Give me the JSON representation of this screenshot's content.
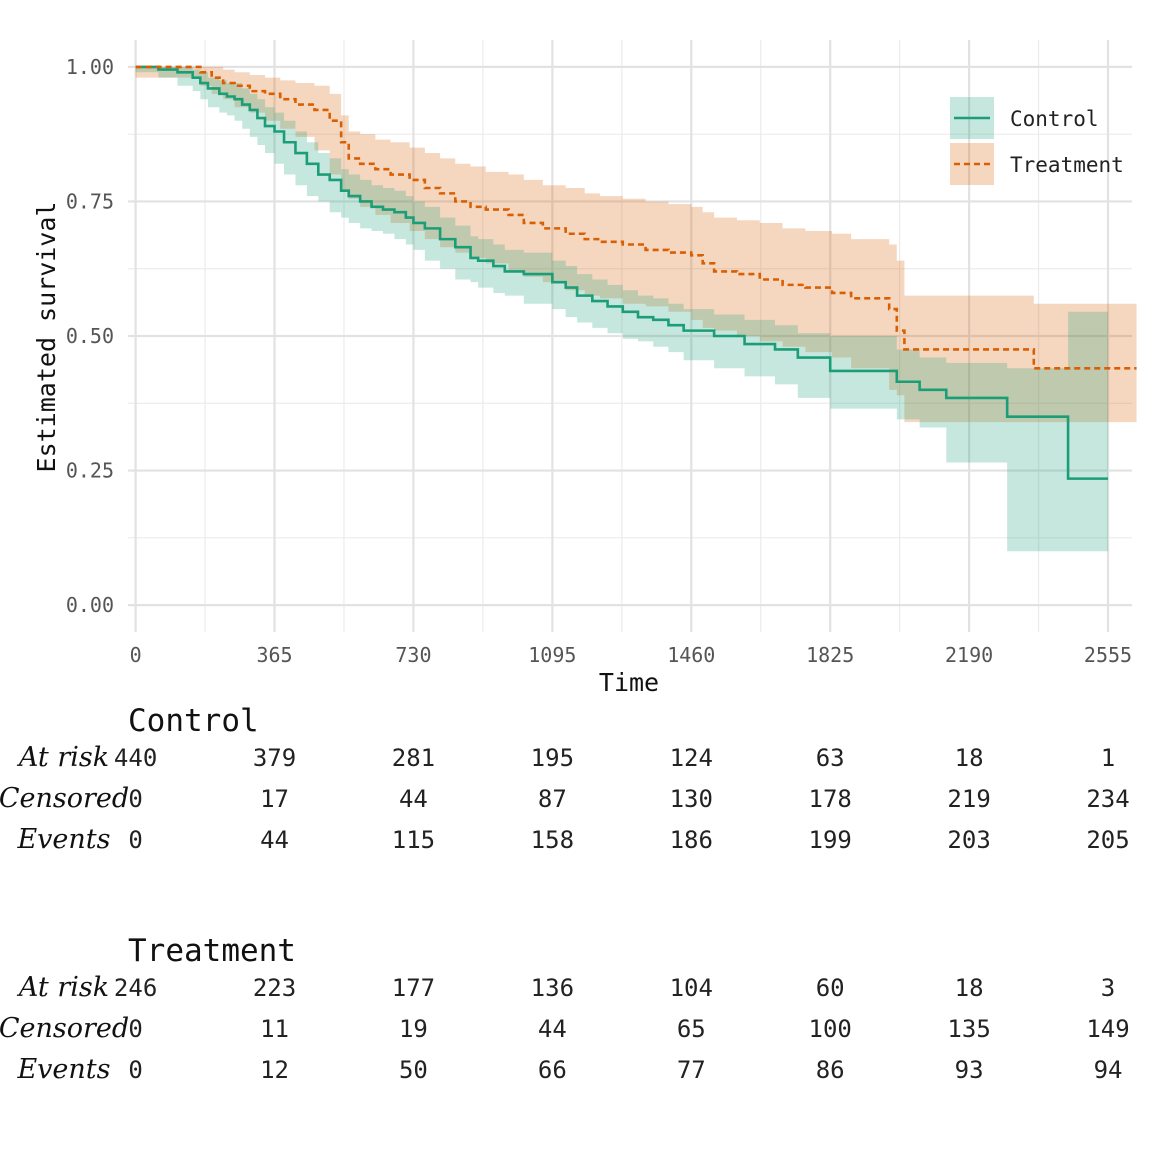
{
  "chart_data": {
    "type": "line",
    "subtype": "kaplan-meier",
    "xlabel": "Time",
    "ylabel": "Estimated survival",
    "xlim": [
      -20,
      2618
    ],
    "ylim": [
      -0.05,
      1.05
    ],
    "x_ticks": [
      0,
      365,
      730,
      1095,
      1460,
      1825,
      2190,
      2555
    ],
    "x_tick_labels": [
      "0",
      "365",
      "730",
      "1095",
      "1460",
      "1825",
      "2190",
      "2555"
    ],
    "y_ticks": [
      0,
      0.25,
      0.5,
      0.75,
      1
    ],
    "y_tick_labels": [
      "0.00",
      "0.25",
      "0.50",
      "0.75",
      "1.00"
    ],
    "grid": true,
    "legend_position": "top-right",
    "series": [
      {
        "name": "Control",
        "color": "#1b9e77",
        "linestyle": "solid",
        "x": [
          0,
          60,
          110,
          150,
          170,
          190,
          220,
          240,
          260,
          280,
          300,
          320,
          340,
          365,
          390,
          420,
          450,
          480,
          510,
          540,
          560,
          590,
          620,
          650,
          680,
          710,
          730,
          760,
          800,
          840,
          880,
          900,
          940,
          970,
          1020,
          1095,
          1130,
          1160,
          1200,
          1240,
          1280,
          1320,
          1360,
          1400,
          1440,
          1520,
          1600,
          1680,
          1740,
          1825,
          2000,
          2060,
          2130,
          2290,
          2450,
          2555
        ],
        "y": [
          1.0,
          0.995,
          0.99,
          0.98,
          0.97,
          0.96,
          0.95,
          0.945,
          0.94,
          0.93,
          0.92,
          0.905,
          0.89,
          0.88,
          0.86,
          0.84,
          0.82,
          0.8,
          0.79,
          0.77,
          0.76,
          0.75,
          0.74,
          0.735,
          0.73,
          0.72,
          0.71,
          0.7,
          0.68,
          0.665,
          0.645,
          0.64,
          0.63,
          0.62,
          0.615,
          0.6,
          0.59,
          0.575,
          0.565,
          0.555,
          0.545,
          0.535,
          0.53,
          0.52,
          0.51,
          0.5,
          0.485,
          0.475,
          0.46,
          0.435,
          0.415,
          0.4,
          0.385,
          0.35,
          0.235,
          0.235
        ],
        "ci_lower": [
          1.0,
          0.99,
          0.98,
          0.965,
          0.955,
          0.94,
          0.925,
          0.915,
          0.91,
          0.9,
          0.885,
          0.87,
          0.855,
          0.84,
          0.82,
          0.8,
          0.78,
          0.76,
          0.75,
          0.73,
          0.72,
          0.71,
          0.7,
          0.695,
          0.69,
          0.68,
          0.67,
          0.66,
          0.64,
          0.625,
          0.605,
          0.6,
          0.59,
          0.58,
          0.575,
          0.56,
          0.55,
          0.535,
          0.525,
          0.515,
          0.505,
          0.495,
          0.49,
          0.48,
          0.47,
          0.455,
          0.44,
          0.425,
          0.41,
          0.385,
          0.365,
          0.345,
          0.33,
          0.265,
          0.1,
          0.1
        ],
        "ci_upper": [
          1.0,
          1.0,
          1.0,
          0.995,
          0.99,
          0.98,
          0.975,
          0.97,
          0.97,
          0.96,
          0.95,
          0.94,
          0.925,
          0.915,
          0.9,
          0.88,
          0.86,
          0.84,
          0.83,
          0.81,
          0.8,
          0.79,
          0.78,
          0.775,
          0.77,
          0.76,
          0.75,
          0.74,
          0.72,
          0.705,
          0.685,
          0.68,
          0.67,
          0.66,
          0.655,
          0.64,
          0.63,
          0.615,
          0.605,
          0.595,
          0.585,
          0.575,
          0.57,
          0.56,
          0.55,
          0.54,
          0.53,
          0.52,
          0.505,
          0.5,
          0.475,
          0.46,
          0.45,
          0.44,
          0.545,
          0.545
        ]
      },
      {
        "name": "Treatment",
        "color": "#d95f02",
        "linestyle": "dashed",
        "x": [
          0,
          170,
          200,
          230,
          260,
          300,
          340,
          380,
          420,
          470,
          510,
          540,
          560,
          590,
          630,
          670,
          720,
          760,
          800,
          840,
          880,
          920,
          980,
          1020,
          1070,
          1130,
          1180,
          1220,
          1280,
          1340,
          1400,
          1460,
          1490,
          1520,
          1580,
          1640,
          1700,
          1760,
          1830,
          1880,
          1980,
          2000,
          2020,
          2360,
          2630
        ],
        "y": [
          1.0,
          0.99,
          0.98,
          0.97,
          0.965,
          0.955,
          0.95,
          0.94,
          0.93,
          0.92,
          0.9,
          0.86,
          0.83,
          0.82,
          0.81,
          0.8,
          0.79,
          0.775,
          0.765,
          0.75,
          0.74,
          0.735,
          0.725,
          0.71,
          0.7,
          0.69,
          0.68,
          0.675,
          0.67,
          0.66,
          0.655,
          0.65,
          0.635,
          0.62,
          0.615,
          0.605,
          0.595,
          0.59,
          0.58,
          0.57,
          0.55,
          0.51,
          0.475,
          0.44,
          0.44
        ],
        "ci_lower": [
          1.0,
          0.98,
          0.965,
          0.95,
          0.94,
          0.925,
          0.915,
          0.9,
          0.885,
          0.87,
          0.845,
          0.8,
          0.77,
          0.755,
          0.74,
          0.725,
          0.71,
          0.695,
          0.68,
          0.665,
          0.655,
          0.645,
          0.635,
          0.62,
          0.61,
          0.6,
          0.585,
          0.575,
          0.57,
          0.56,
          0.555,
          0.545,
          0.53,
          0.515,
          0.51,
          0.5,
          0.49,
          0.48,
          0.47,
          0.46,
          0.44,
          0.4,
          0.39,
          0.34,
          0.34
        ],
        "ci_upper": [
          1.0,
          1.0,
          1.0,
          0.995,
          0.99,
          0.985,
          0.98,
          0.975,
          0.97,
          0.965,
          0.95,
          0.91,
          0.88,
          0.875,
          0.865,
          0.86,
          0.85,
          0.84,
          0.83,
          0.82,
          0.815,
          0.805,
          0.8,
          0.79,
          0.78,
          0.775,
          0.765,
          0.76,
          0.755,
          0.75,
          0.745,
          0.74,
          0.73,
          0.72,
          0.715,
          0.71,
          0.7,
          0.695,
          0.69,
          0.68,
          0.67,
          0.64,
          0.575,
          0.56,
          0.565
        ]
      }
    ],
    "risk_table": {
      "time_points": [
        0,
        365,
        730,
        1095,
        1460,
        1825,
        2190,
        2555
      ],
      "row_labels": [
        "At risk",
        "Censored",
        "Events"
      ],
      "groups": [
        {
          "name": "Control",
          "at_risk": [
            440,
            379,
            281,
            195,
            124,
            63,
            18,
            1
          ],
          "censored": [
            0,
            17,
            44,
            87,
            130,
            178,
            219,
            234
          ],
          "events": [
            0,
            44,
            115,
            158,
            186,
            199,
            203,
            205
          ]
        },
        {
          "name": "Treatment",
          "at_risk": [
            246,
            223,
            177,
            136,
            104,
            60,
            18,
            3
          ],
          "censored": [
            0,
            11,
            19,
            44,
            65,
            100,
            135,
            149
          ],
          "events": [
            0,
            12,
            50,
            66,
            77,
            86,
            93,
            94
          ]
        }
      ]
    }
  }
}
